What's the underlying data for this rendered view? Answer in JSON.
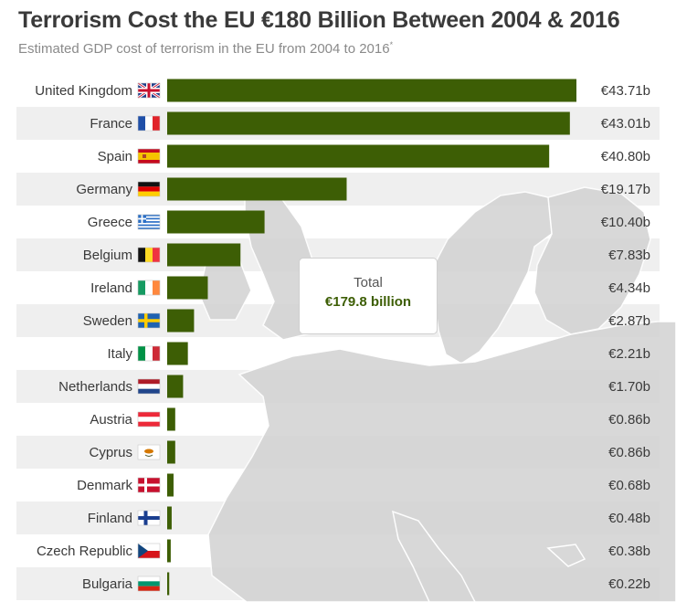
{
  "chart_data": {
    "type": "bar",
    "orientation": "horizontal",
    "title": "Terrorism Cost the EU €180 Billion Between 2004 & 2016",
    "subtitle": "Estimated GDP cost of terrorism in the EU from 2004 to 2016",
    "subtitle_mark": "*",
    "categories": [
      "United Kingdom",
      "France",
      "Spain",
      "Germany",
      "Greece",
      "Belgium",
      "Ireland",
      "Sweden",
      "Italy",
      "Netherlands",
      "Austria",
      "Cyprus",
      "Denmark",
      "Finland",
      "Czech Republic",
      "Bulgaria"
    ],
    "flags": [
      "uk-flag-icon",
      "france-flag-icon",
      "spain-flag-icon",
      "germany-flag-icon",
      "greece-flag-icon",
      "belgium-flag-icon",
      "ireland-flag-icon",
      "sweden-flag-icon",
      "italy-flag-icon",
      "netherlands-flag-icon",
      "austria-flag-icon",
      "cyprus-flag-icon",
      "denmark-flag-icon",
      "finland-flag-icon",
      "czech-republic-flag-icon",
      "bulgaria-flag-icon"
    ],
    "values": [
      43.71,
      43.01,
      40.8,
      19.17,
      10.4,
      7.83,
      4.34,
      2.87,
      2.21,
      1.7,
      0.86,
      0.86,
      0.68,
      0.48,
      0.38,
      0.22
    ],
    "value_labels": [
      "€43.71b",
      "€43.01b",
      "€40.80b",
      "€19.17b",
      "€10.40b",
      "€7.83b",
      "€4.34b",
      "€2.87b",
      "€2.21b",
      "€1.70b",
      "€0.86b",
      "€0.86b",
      "€0.68b",
      "€0.48b",
      "€0.38b",
      "€0.22b"
    ],
    "xlim": [
      0,
      43.71
    ],
    "bar_color": "#3d5e05",
    "stripe_color": "#efefef",
    "background_map": "europe-map",
    "annotation": {
      "label": "Total",
      "value": "€179.8 billion"
    }
  }
}
